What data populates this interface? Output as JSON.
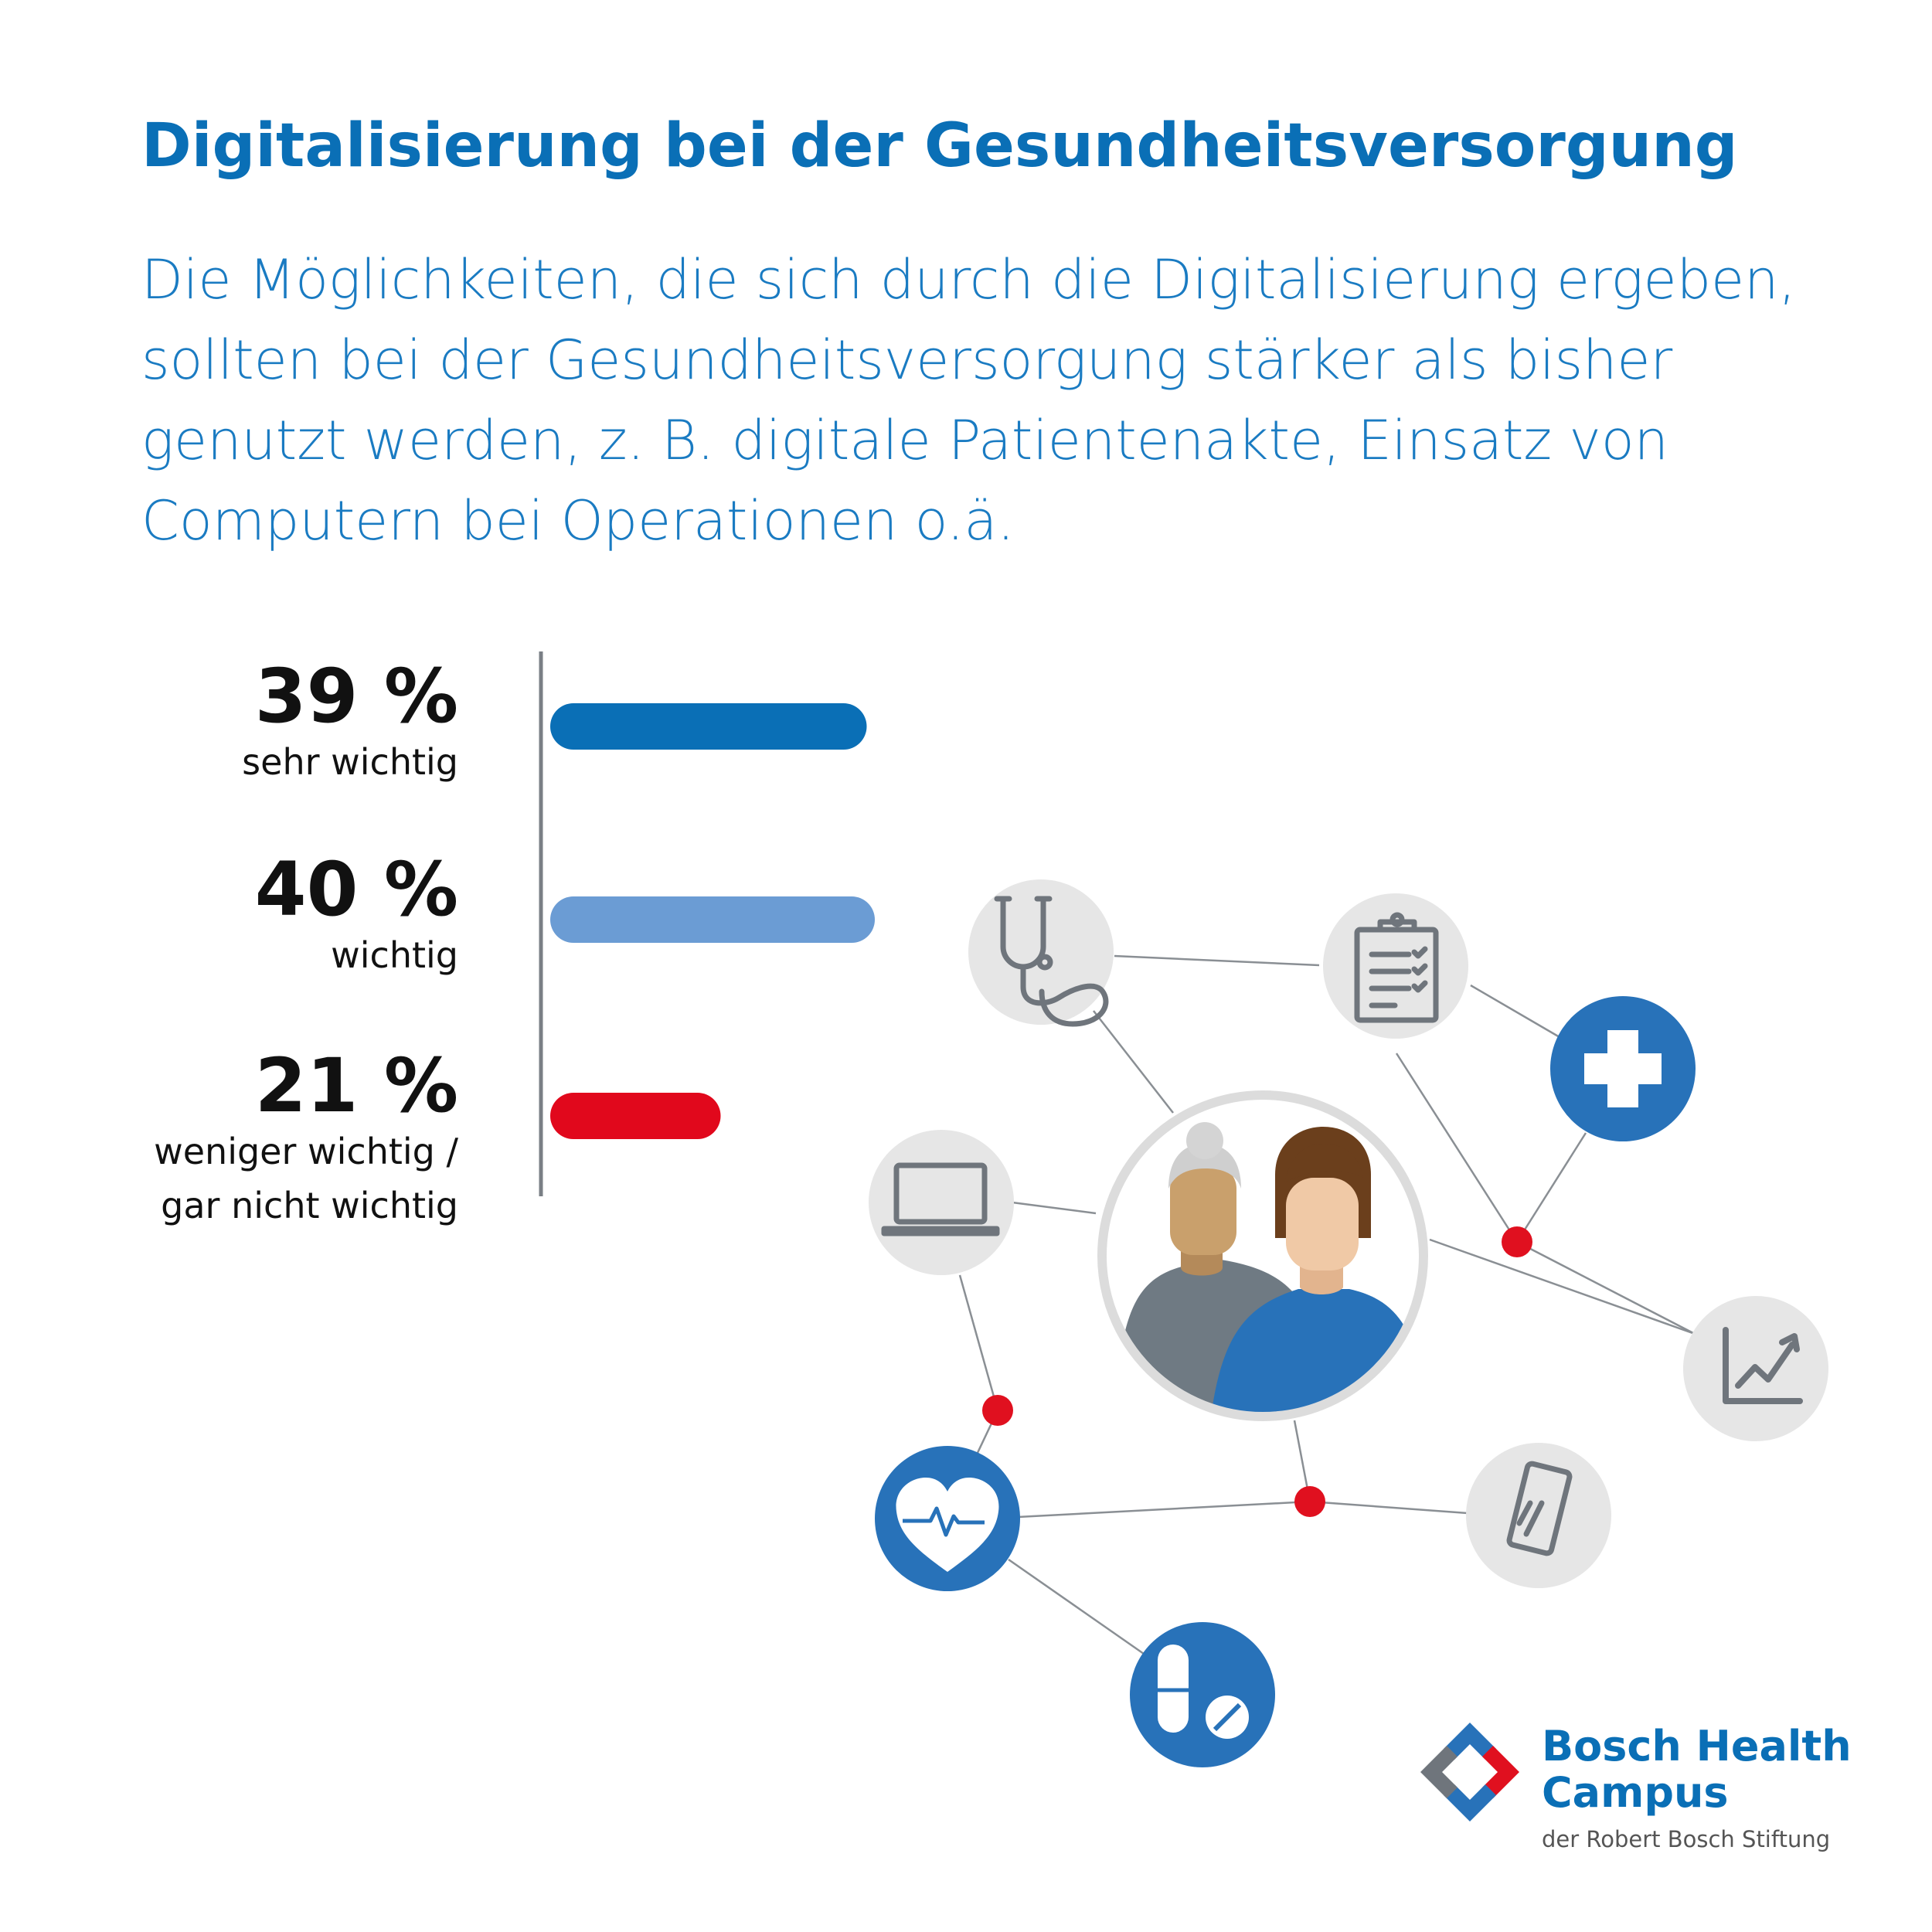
{
  "header": {
    "title": "Digitalisierung bei der Gesundheitsversorgung",
    "subtitle_lines": [
      "Die Möglichkeiten, die sich durch die Digitalisierung ergeben,",
      "sollten bei der Gesundheitsversorgung stärker als bisher",
      "genutzt werden, z. B. digitale Patientenakte, Einsatz von",
      "Computern bei Operationen o.ä."
    ]
  },
  "chart_data": {
    "type": "bar",
    "orientation": "horizontal",
    "categories": [
      "sehr wichtig",
      "wichtig",
      "weniger wichtig / gar nicht wichtig"
    ],
    "category_lines": [
      [
        "sehr wichtig"
      ],
      [
        "wichtig"
      ],
      [
        "weniger wichtig /",
        "gar nicht wichtig"
      ]
    ],
    "values": [
      39,
      40,
      21
    ],
    "value_labels": [
      "39 %",
      "40 %",
      "21 %"
    ],
    "unit": "%",
    "colors": [
      "#0a6fb6",
      "#6b9cd4",
      "#e1081c"
    ],
    "xlim": [
      0,
      40
    ]
  },
  "illustration": {
    "accent_blue": "#2872b9",
    "accent_red": "#e0101f",
    "icon_gray": "#e6e6e6",
    "icons": [
      "stethoscope-icon",
      "clipboard-icon",
      "medical-cross-icon",
      "laptop-icon",
      "growth-chart-icon",
      "smartphone-icon",
      "heart-pulse-icon",
      "pills-icon",
      "patients-icon"
    ]
  },
  "brand": {
    "name_line1": "Bosch Health",
    "name_line2": "Campus",
    "sub": "der Robert Bosch Stiftung"
  }
}
